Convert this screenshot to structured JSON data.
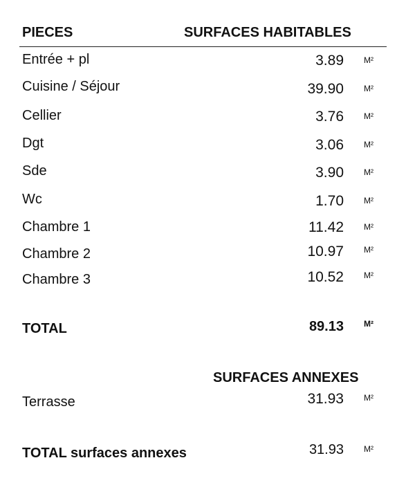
{
  "header": {
    "pieces": "PIECES",
    "surfaces_habitables": "SURFACES HABITABLES"
  },
  "rooms": [
    {
      "name": "Entrée + pl",
      "area": "3.89",
      "unit": "M²"
    },
    {
      "name": "Cuisine / Séjour",
      "area": "39.90",
      "unit": "M²"
    },
    {
      "name": "Cellier",
      "area": "3.76",
      "unit": "M²"
    },
    {
      "name": "Dgt",
      "area": "3.06",
      "unit": "M²"
    },
    {
      "name": "Sde",
      "area": "3.90",
      "unit": "M²"
    },
    {
      "name": "Wc",
      "area": "1.70",
      "unit": "M²"
    },
    {
      "name": "Chambre 1",
      "area": "11.42",
      "unit": "M²"
    },
    {
      "name": "Chambre 2",
      "area": "10.97",
      "unit": "M²"
    },
    {
      "name": "Chambre 3",
      "area": "10.52",
      "unit": "M²"
    }
  ],
  "total": {
    "label": "TOTAL",
    "area": "89.13",
    "unit": "M²"
  },
  "annexes": {
    "title": "SURFACES ANNEXES",
    "items": [
      {
        "name": "Terrasse",
        "area": "31.93",
        "unit": "M²"
      }
    ],
    "total": {
      "label": "TOTAL surfaces annexes",
      "area": "31.93",
      "unit": "M²"
    }
  }
}
